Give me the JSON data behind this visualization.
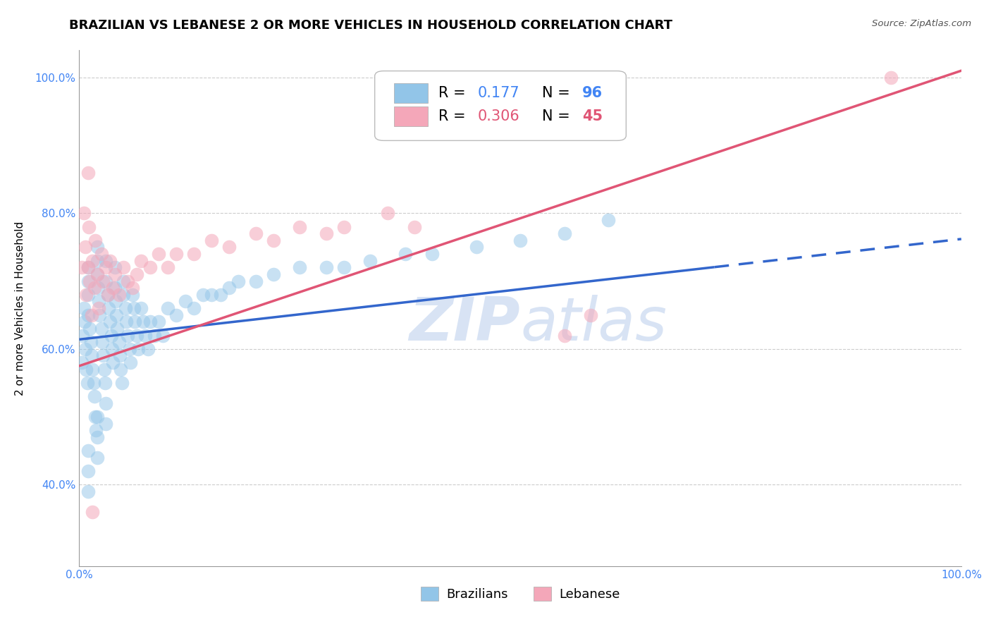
{
  "title": "BRAZILIAN VS LEBANESE 2 OR MORE VEHICLES IN HOUSEHOLD CORRELATION CHART",
  "source": "Source: ZipAtlas.com",
  "ylabel": "2 or more Vehicles in Household",
  "xlim": [
    0.0,
    1.0
  ],
  "ylim": [
    0.28,
    1.04
  ],
  "xticks": [
    0.0,
    0.25,
    0.5,
    0.75,
    1.0
  ],
  "xticklabels": [
    "0.0%",
    "",
    "",
    "",
    "100.0%"
  ],
  "yticks": [
    0.4,
    0.6,
    0.8,
    1.0
  ],
  "yticklabels": [
    "40.0%",
    "60.0%",
    "80.0%",
    "100.0%"
  ],
  "r_brazilian": 0.177,
  "n_brazilian": 96,
  "r_lebanese": 0.306,
  "n_lebanese": 45,
  "blue_color": "#92C5E8",
  "pink_color": "#F4A7B9",
  "blue_line_color": "#3366CC",
  "pink_line_color": "#E05575",
  "tick_color": "#4285F4",
  "grid_color": "#CCCCCC",
  "watermark_color": "#C8D8F0",
  "title_fontsize": 13,
  "axis_label_fontsize": 11,
  "tick_fontsize": 11,
  "blue_line_intercept": 0.614,
  "blue_line_slope": 0.148,
  "pink_line_intercept": 0.575,
  "pink_line_slope": 0.435,
  "brazilian_x": [
    0.003,
    0.004,
    0.005,
    0.006,
    0.007,
    0.008,
    0.009,
    0.01,
    0.01,
    0.01,
    0.01,
    0.012,
    0.013,
    0.014,
    0.015,
    0.016,
    0.017,
    0.018,
    0.019,
    0.02,
    0.02,
    0.02,
    0.021,
    0.022,
    0.023,
    0.025,
    0.026,
    0.027,
    0.028,
    0.029,
    0.03,
    0.03,
    0.032,
    0.033,
    0.035,
    0.036,
    0.037,
    0.038,
    0.04,
    0.04,
    0.041,
    0.042,
    0.043,
    0.045,
    0.046,
    0.047,
    0.048,
    0.05,
    0.05,
    0.052,
    0.053,
    0.055,
    0.057,
    0.058,
    0.06,
    0.062,
    0.063,
    0.065,
    0.067,
    0.07,
    0.072,
    0.075,
    0.078,
    0.08,
    0.085,
    0.09,
    0.095,
    0.1,
    0.11,
    0.12,
    0.13,
    0.14,
    0.15,
    0.16,
    0.17,
    0.18,
    0.2,
    0.22,
    0.25,
    0.28,
    0.3,
    0.33,
    0.37,
    0.4,
    0.45,
    0.5,
    0.01,
    0.01,
    0.01,
    0.02,
    0.02,
    0.02,
    0.03,
    0.03,
    0.55,
    0.6
  ],
  "brazilian_y": [
    0.58,
    0.62,
    0.66,
    0.64,
    0.6,
    0.57,
    0.55,
    0.72,
    0.7,
    0.68,
    0.65,
    0.63,
    0.61,
    0.59,
    0.57,
    0.55,
    0.53,
    0.5,
    0.48,
    0.75,
    0.73,
    0.71,
    0.69,
    0.67,
    0.65,
    0.63,
    0.61,
    0.59,
    0.57,
    0.55,
    0.73,
    0.7,
    0.68,
    0.66,
    0.64,
    0.62,
    0.6,
    0.58,
    0.72,
    0.69,
    0.67,
    0.65,
    0.63,
    0.61,
    0.59,
    0.57,
    0.55,
    0.7,
    0.68,
    0.66,
    0.64,
    0.62,
    0.6,
    0.58,
    0.68,
    0.66,
    0.64,
    0.62,
    0.6,
    0.66,
    0.64,
    0.62,
    0.6,
    0.64,
    0.62,
    0.64,
    0.62,
    0.66,
    0.65,
    0.67,
    0.66,
    0.68,
    0.68,
    0.68,
    0.69,
    0.7,
    0.7,
    0.71,
    0.72,
    0.72,
    0.72,
    0.73,
    0.74,
    0.74,
    0.75,
    0.76,
    0.45,
    0.42,
    0.39,
    0.5,
    0.47,
    0.44,
    0.52,
    0.49,
    0.77,
    0.79
  ],
  "lebanese_x": [
    0.003,
    0.005,
    0.007,
    0.008,
    0.01,
    0.011,
    0.012,
    0.014,
    0.015,
    0.017,
    0.018,
    0.02,
    0.022,
    0.025,
    0.027,
    0.03,
    0.032,
    0.035,
    0.038,
    0.04,
    0.045,
    0.05,
    0.055,
    0.06,
    0.065,
    0.07,
    0.08,
    0.09,
    0.1,
    0.11,
    0.13,
    0.15,
    0.17,
    0.2,
    0.22,
    0.25,
    0.28,
    0.3,
    0.35,
    0.38,
    0.55,
    0.58,
    0.92,
    0.01,
    0.015
  ],
  "lebanese_y": [
    0.72,
    0.8,
    0.75,
    0.68,
    0.72,
    0.78,
    0.7,
    0.65,
    0.73,
    0.69,
    0.76,
    0.71,
    0.66,
    0.74,
    0.7,
    0.72,
    0.68,
    0.73,
    0.69,
    0.71,
    0.68,
    0.72,
    0.7,
    0.69,
    0.71,
    0.73,
    0.72,
    0.74,
    0.72,
    0.74,
    0.74,
    0.76,
    0.75,
    0.77,
    0.76,
    0.78,
    0.77,
    0.78,
    0.8,
    0.78,
    0.62,
    0.65,
    1.0,
    0.86,
    0.36
  ]
}
